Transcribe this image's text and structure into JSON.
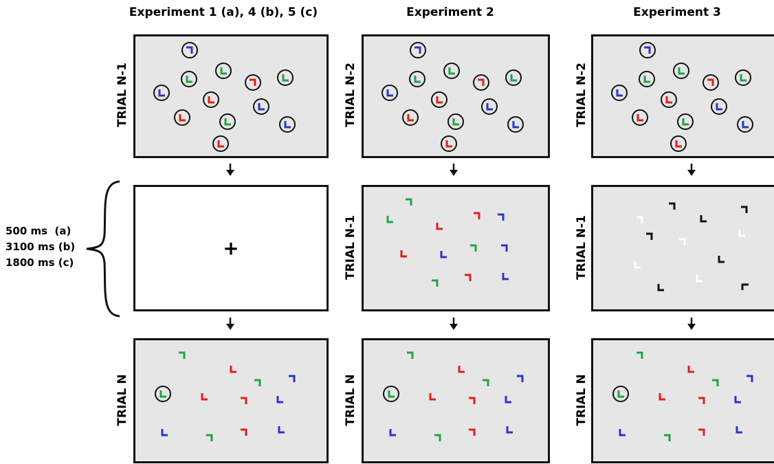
{
  "columns": [
    {
      "title": "Experiment 1 (a), 4 (b), 5 (c)"
    },
    {
      "title": "Experiment 2"
    },
    {
      "title": "Experiment 3"
    }
  ],
  "row_labels": {
    "exp1": [
      "TRIAL N-1",
      "",
      "TRIAL N"
    ],
    "exp2": [
      "TRIAL N-2",
      "TRIAL N-1",
      "TRIAL N"
    ],
    "exp3": [
      "TRIAL N-2",
      "TRIAL N-1",
      "TRIAL N"
    ]
  },
  "timing": {
    "line1": "500 ms  (a)",
    "line2": "3100 ms (b)",
    "line3": "1800 ms (c)"
  },
  "fixation": "+",
  "colors": {
    "panel_bg": "#e6e6e6",
    "blank_bg": "#ffffff",
    "red": "#e0201a",
    "green": "#1fa34a",
    "blue": "#2b35c8",
    "black": "#111111",
    "white": "#ffffff"
  },
  "icons": [
    "down-arrow-icon",
    "curly-brace-icon",
    "fixation-cross-icon"
  ]
}
